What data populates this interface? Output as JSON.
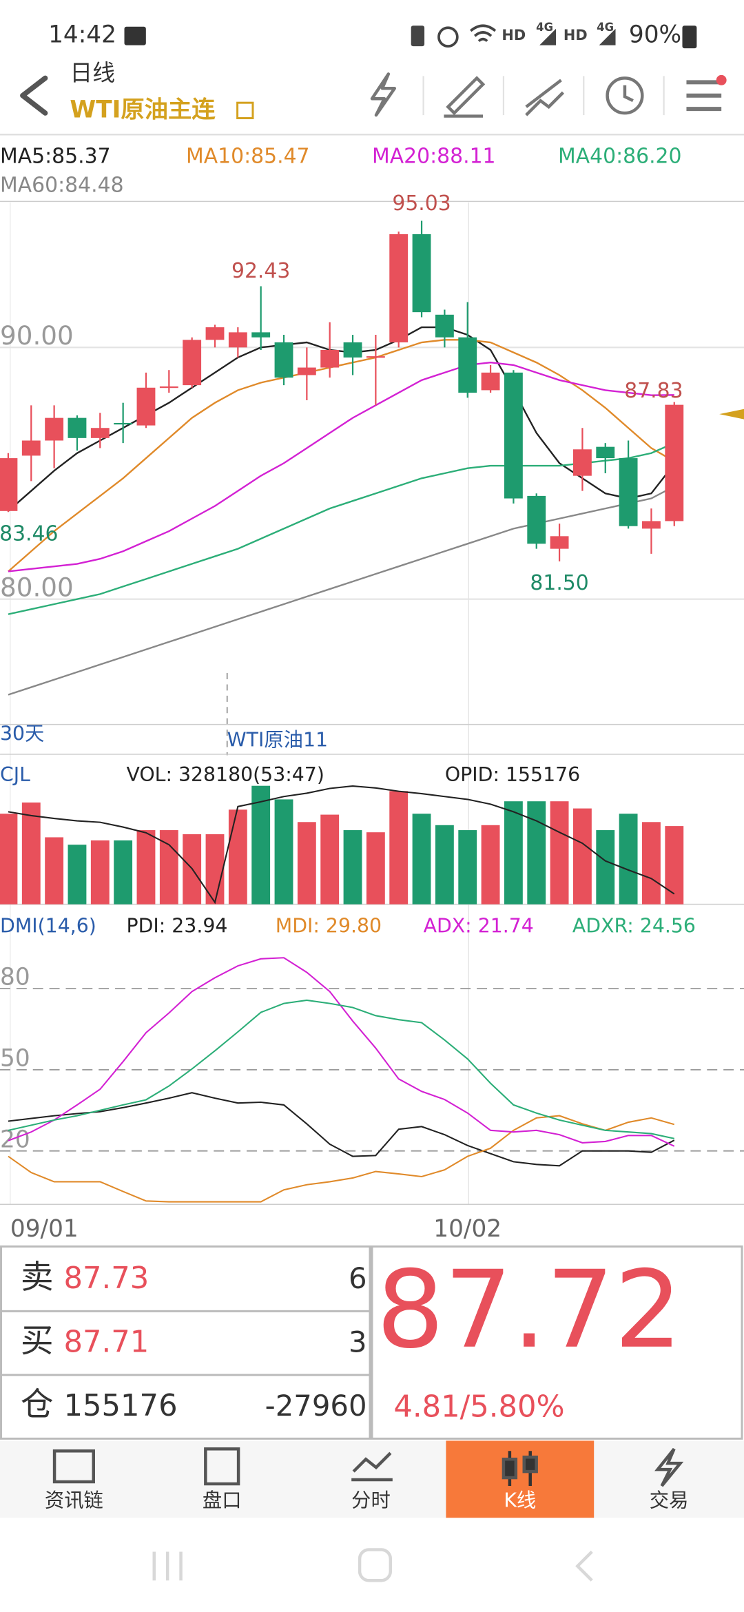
{
  "status_bar": {
    "time": "14:42",
    "network": [
      "HD",
      "4G",
      "HD",
      "4G"
    ],
    "battery": "90%"
  },
  "header": {
    "period": "日线",
    "symbol": "WTI原油主连"
  },
  "chart_data": [
    {
      "type": "candlestick",
      "up_color": "#e8505b",
      "down_color": "#1e9b6e",
      "ylim": [
        75.02,
        95.76
      ],
      "yticks": [
        {
          "value": 80,
          "label": "80.00"
        },
        {
          "value": 90,
          "label": "90.00"
        }
      ],
      "open": [
        83.5,
        85.7,
        86.3,
        87.2,
        86.4,
        87.0,
        86.9,
        88.4,
        88.5,
        90.3,
        90.0,
        90.6,
        90.2,
        88.9,
        89.2,
        90.2,
        89.6,
        90.2,
        94.5,
        91.3,
        90.4,
        88.3,
        89.0,
        84.1,
        82.0,
        84.9,
        86.05,
        85.6,
        82.8,
        83.1
      ],
      "high": [
        85.8,
        87.7,
        87.7,
        87.3,
        87.4,
        87.8,
        89.0,
        89.1,
        90.4,
        90.9,
        90.8,
        92.43,
        90.5,
        90.0,
        91.0,
        90.5,
        90.5,
        94.6,
        95.03,
        91.5,
        91.8,
        89.3,
        89.1,
        84.2,
        83.0,
        86.8,
        86.2,
        86.3,
        83.6,
        87.83
      ],
      "low": [
        83.46,
        84.69,
        85.2,
        85.9,
        86.0,
        86.2,
        86.8,
        88.2,
        88.4,
        90.0,
        89.6,
        89.9,
        88.5,
        87.9,
        88.8,
        88.9,
        87.7,
        90.0,
        91.2,
        90.0,
        88.0,
        88.2,
        83.8,
        82.0,
        81.5,
        84.3,
        85.0,
        82.8,
        81.8,
        82.9
      ],
      "close": [
        85.6,
        86.3,
        87.2,
        86.4,
        86.8,
        86.95,
        88.4,
        88.45,
        90.3,
        90.8,
        90.6,
        90.4,
        88.8,
        89.2,
        89.9,
        89.6,
        89.65,
        94.5,
        91.4,
        90.4,
        88.2,
        89.0,
        84.0,
        82.2,
        82.5,
        85.95,
        85.6,
        82.9,
        83.1,
        87.72
      ],
      "series": [
        {
          "name": "MA5:85.37",
          "color": "#222222",
          "values": [
            83.5,
            84.3,
            85.1,
            85.8,
            86.3,
            86.8,
            87.3,
            87.8,
            88.4,
            89.0,
            89.6,
            90.0,
            90.1,
            90.2,
            89.9,
            89.8,
            89.9,
            90.3,
            90.8,
            90.8,
            90.5,
            89.9,
            88.3,
            86.6,
            85.4,
            84.8,
            84.2,
            84.0,
            84.2,
            85.37
          ]
        },
        {
          "name": "MA10:85.47",
          "color": "#e08a2a",
          "values": [
            81.1,
            81.9,
            82.7,
            83.4,
            84.1,
            84.8,
            85.6,
            86.4,
            87.2,
            87.8,
            88.3,
            88.6,
            88.8,
            89.0,
            89.2,
            89.4,
            89.6,
            89.9,
            90.2,
            90.3,
            90.3,
            90.2,
            89.8,
            89.4,
            88.9,
            88.3,
            87.6,
            86.8,
            86.0,
            85.47
          ]
        },
        {
          "name": "MA20:88.11",
          "color": "#d321d3",
          "values": [
            81.1,
            81.2,
            81.3,
            81.4,
            81.6,
            81.9,
            82.3,
            82.7,
            83.2,
            83.7,
            84.3,
            84.9,
            85.4,
            86.0,
            86.6,
            87.2,
            87.7,
            88.2,
            88.7,
            89.0,
            89.3,
            89.4,
            89.3,
            89.0,
            88.7,
            88.5,
            88.3,
            88.2,
            88.1,
            88.11
          ]
        },
        {
          "name": "MA40:86.20",
          "color": "#2cae78",
          "values": [
            79.4,
            79.6,
            79.8,
            80.0,
            80.2,
            80.5,
            80.8,
            81.1,
            81.4,
            81.7,
            82.0,
            82.4,
            82.8,
            83.2,
            83.6,
            83.9,
            84.2,
            84.5,
            84.8,
            85.0,
            85.2,
            85.3,
            85.3,
            85.3,
            85.3,
            85.4,
            85.5,
            85.6,
            85.8,
            86.2
          ]
        },
        {
          "name": "MA60:84.48",
          "color": "#888888",
          "values": [
            76.2,
            76.5,
            76.8,
            77.1,
            77.4,
            77.7,
            78.0,
            78.3,
            78.6,
            78.9,
            79.2,
            79.5,
            79.8,
            80.1,
            80.4,
            80.7,
            81.0,
            81.3,
            81.6,
            81.9,
            82.2,
            82.5,
            82.8,
            83.0,
            83.2,
            83.4,
            83.6,
            83.8,
            84.0,
            84.48
          ]
        }
      ],
      "annotations": [
        "95.03",
        "92.43",
        "87.83",
        "83.46",
        "81.50"
      ],
      "notes": [
        "30天",
        "WTI原油11"
      ]
    },
    {
      "type": "bar",
      "title": "CJL",
      "ylim": [
        0,
        500000
      ],
      "y2lim": [
        153000,
        178000
      ],
      "series": [
        {
          "name": "VOL: 328180(53:47)",
          "values": [
            380000,
            427000,
            281000,
            250000,
            268000,
            268000,
            311000,
            311000,
            294000,
            294000,
            397000,
            497000,
            440000,
            345000,
            376000,
            311000,
            302000,
            475000,
            380000,
            332000,
            311000,
            332000,
            432000,
            432000,
            432000,
            402000,
            311000,
            380000,
            345000,
            328180
          ]
        },
        {
          "name": "OPID: 155176",
          "color": "#222222",
          "axis": "y2",
          "values": [
            172400,
            171600,
            171000,
            170500,
            170200,
            169200,
            168000,
            165500,
            160500,
            153400,
            173500,
            174500,
            175600,
            176300,
            177300,
            177800,
            177400,
            176700,
            176200,
            175600,
            175000,
            174000,
            172400,
            170500,
            168100,
            165800,
            162100,
            160200,
            158400,
            155176
          ]
        }
      ]
    },
    {
      "type": "line",
      "title": "DMI(14,6)",
      "ylim": [
        1.01,
        95.96
      ],
      "yticks": [
        20,
        50,
        80
      ],
      "categories": [
        "09/01",
        null,
        null,
        null,
        null,
        null,
        null,
        null,
        null,
        null,
        null,
        null,
        null,
        null,
        null,
        null,
        null,
        null,
        null,
        null,
        "10/02",
        null,
        null,
        null,
        null,
        null,
        null,
        null,
        null,
        null
      ],
      "series": [
        {
          "name": "PDI: 23.94",
          "color": "#222222",
          "values": [
            31,
            32,
            33,
            33.8,
            34.5,
            36,
            37.7,
            39.5,
            41.5,
            39.5,
            37.7,
            38,
            37,
            30,
            22.5,
            18,
            18.3,
            28,
            29,
            26,
            22,
            19,
            16,
            15,
            14.5,
            20,
            20,
            20,
            19.5,
            23.94
          ]
        },
        {
          "name": "MDI: 29.80",
          "color": "#e08a2a",
          "values": [
            18,
            12,
            8.6,
            8.6,
            8.6,
            5,
            1.5,
            1.2,
            1.2,
            1.2,
            1.2,
            1.2,
            5.6,
            7.5,
            8.6,
            10,
            12.4,
            11.5,
            10.5,
            13,
            18,
            21,
            27.6,
            32.2,
            33,
            30,
            27.6,
            30.6,
            32.2,
            29.8
          ]
        },
        {
          "name": "ADX: 21.74",
          "color": "#d321d3",
          "values": [
            23.8,
            27,
            31.4,
            37,
            42.8,
            53,
            63.7,
            71,
            78.9,
            84,
            88.4,
            91,
            91.4,
            86,
            78.9,
            68,
            58,
            46.6,
            42,
            39,
            34,
            27.6,
            27,
            27.6,
            26,
            23,
            23.5,
            25.7,
            25.7,
            21.74
          ]
        },
        {
          "name": "ADXR: 24.56",
          "color": "#2cae78",
          "values": [
            27.6,
            29.5,
            31.4,
            33,
            35,
            37,
            38.9,
            44,
            50.3,
            57,
            64,
            71.2,
            74.5,
            75.7,
            74.5,
            73,
            70,
            68.5,
            67.4,
            61,
            54,
            45,
            37,
            34,
            31.4,
            29.5,
            27.6,
            27,
            26.4,
            24.56
          ]
        }
      ]
    }
  ],
  "quote": {
    "sell": {
      "label": "卖",
      "price": 87.73,
      "qty": 6
    },
    "buy": {
      "label": "买",
      "price": 87.71,
      "qty": 3
    },
    "position": {
      "label": "仓",
      "value": 155176,
      "change": -27960
    },
    "last": 87.72,
    "change": "4.81/5.80%"
  },
  "nav": {
    "items": [
      "资讯链",
      "盘口",
      "分时",
      "K线",
      "交易"
    ],
    "active": 3
  }
}
